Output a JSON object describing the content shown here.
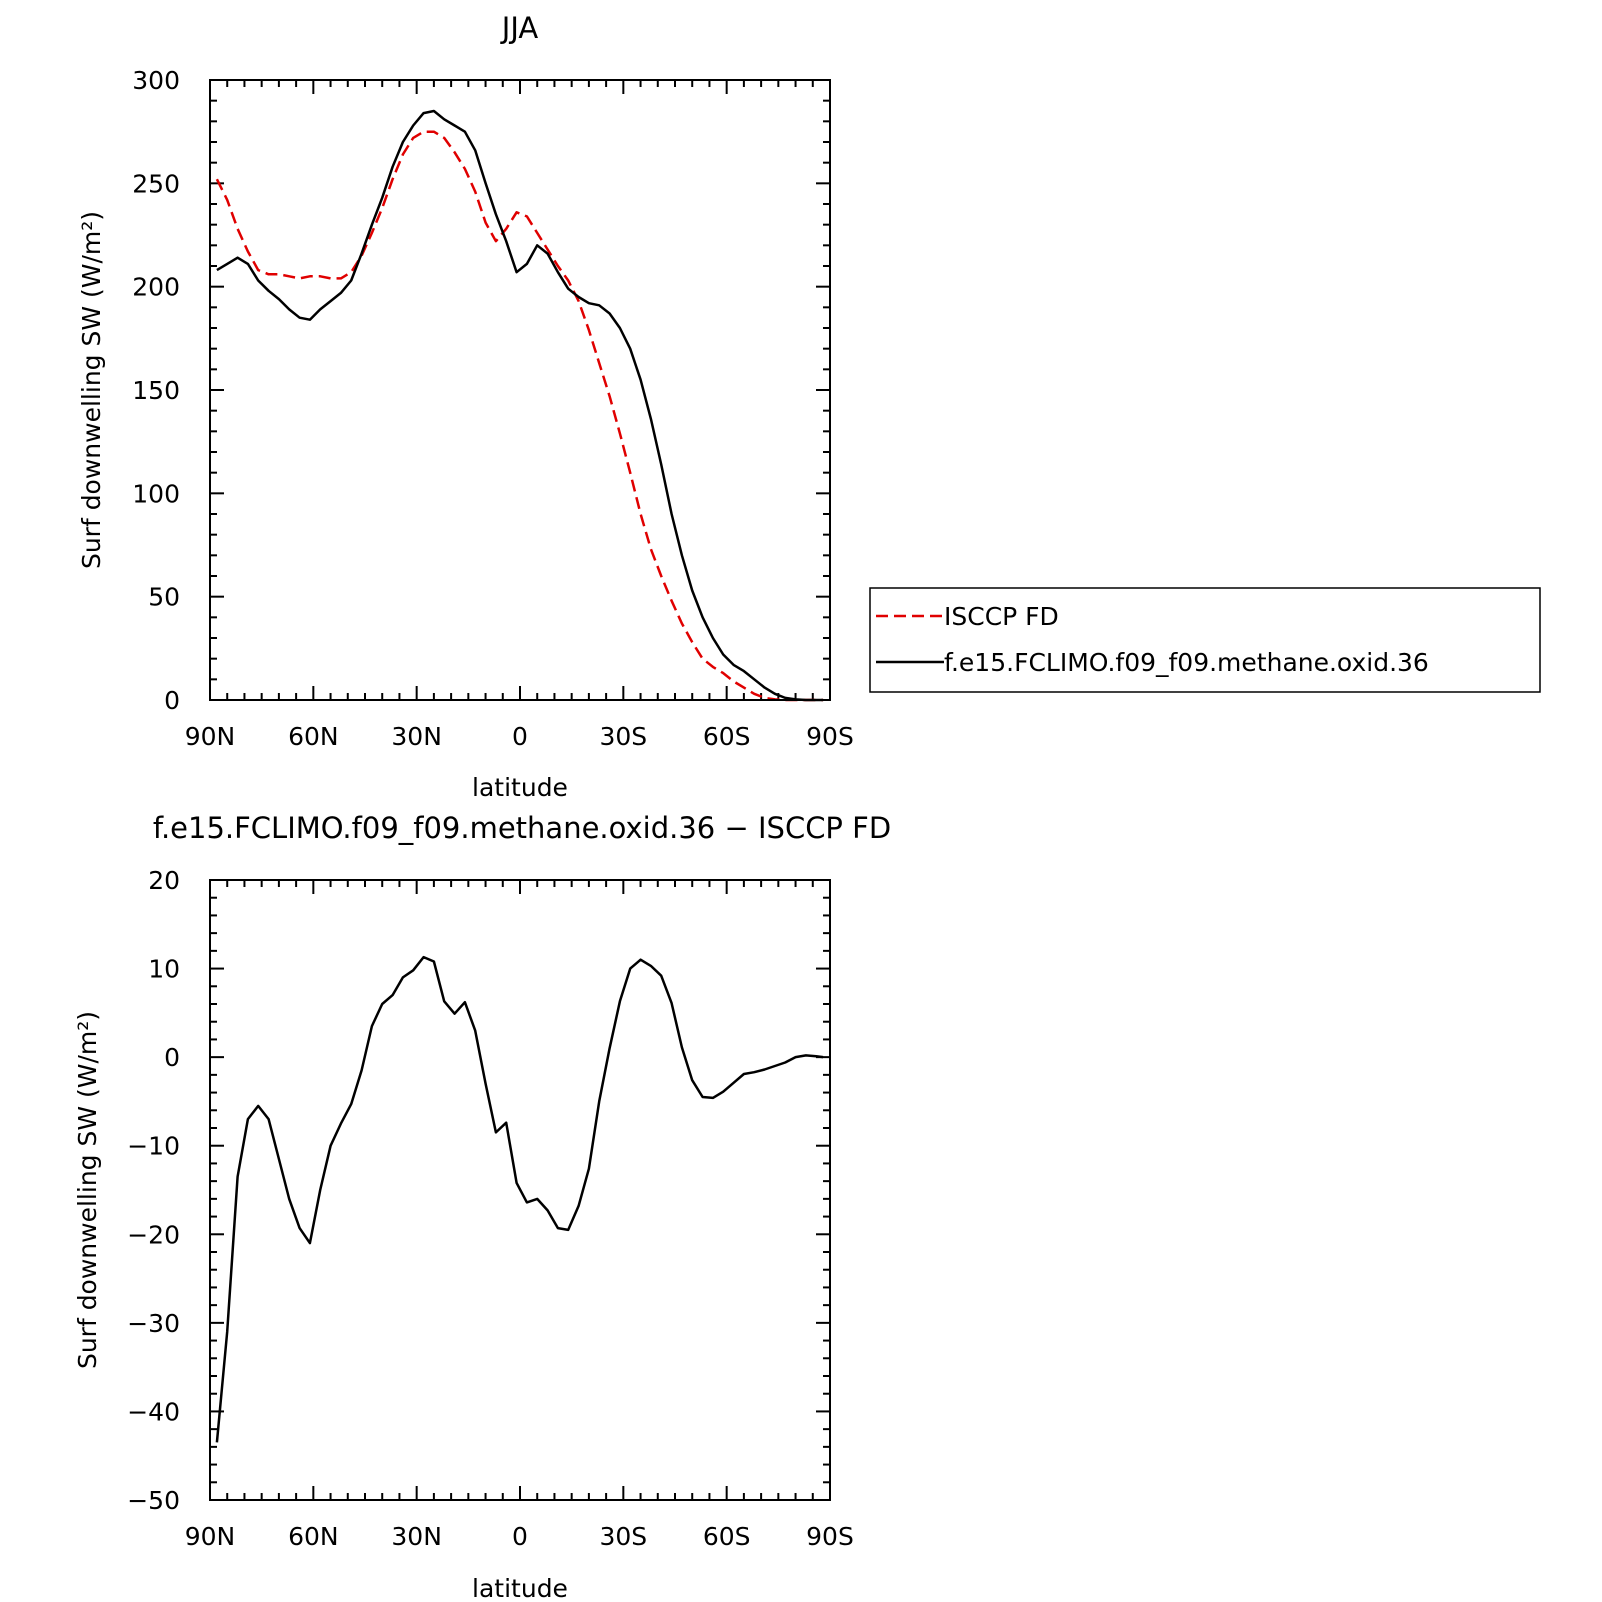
{
  "chart_data": [
    {
      "type": "line",
      "title": "JJA",
      "xlabel": "latitude",
      "ylabel": "Surf downwelling SW (W/m²)",
      "xlim": [
        90,
        -90
      ],
      "ylim": [
        0,
        300
      ],
      "x_ticks": [
        90,
        60,
        30,
        0,
        -30,
        -60,
        -90
      ],
      "x_tick_labels": [
        "90N",
        "60N",
        "30N",
        "0",
        "30S",
        "60S",
        "90S"
      ],
      "y_ticks": [
        0,
        50,
        100,
        150,
        200,
        250,
        300
      ],
      "y_tick_labels": [
        "0",
        "50",
        "100",
        "150",
        "200",
        "250",
        "300"
      ],
      "legend": {
        "placement": "right",
        "entries": [
          "ISCCP FD",
          "f.e15.FCLIMO.f09_f09.methane.oxid.36"
        ]
      },
      "series": [
        {
          "name": "ISCCP FD",
          "color": "#e00000",
          "dash": true,
          "x": [
            88,
            85,
            82,
            79,
            76,
            73,
            70,
            67,
            64,
            61,
            58,
            55,
            52,
            49,
            46,
            43,
            40,
            37,
            34,
            31,
            28,
            25,
            22,
            19,
            16,
            13,
            10,
            7,
            4,
            1,
            -2,
            -5,
            -8,
            -11,
            -14,
            -17,
            -20,
            -23,
            -26,
            -29,
            -32,
            -35,
            -38,
            -41,
            -44,
            -47,
            -50,
            -53,
            -56,
            -59,
            -62,
            -65,
            -68,
            -71,
            -74,
            -77,
            -80,
            -83,
            -86,
            -88
          ],
          "values": [
            252,
            242,
            228,
            217,
            208,
            206,
            206,
            205,
            204,
            205,
            205,
            204,
            204,
            207,
            215,
            226,
            238,
            252,
            264,
            272,
            275,
            275,
            272,
            265,
            257,
            246,
            231,
            222,
            228,
            236,
            234,
            226,
            218,
            210,
            203,
            193,
            179,
            163,
            147,
            129,
            110,
            90,
            73,
            60,
            48,
            37,
            28,
            20,
            16,
            13,
            9,
            6,
            3,
            1,
            0.3,
            0,
            0,
            0,
            0,
            0
          ]
        },
        {
          "name": "f.e15.FCLIMO.f09_f09.methane.oxid.36",
          "color": "#000000",
          "dash": false,
          "x": [
            88,
            85,
            82,
            79,
            76,
            73,
            70,
            67,
            64,
            61,
            58,
            55,
            52,
            49,
            46,
            43,
            40,
            37,
            34,
            31,
            28,
            25,
            22,
            19,
            16,
            13,
            10,
            7,
            4,
            1,
            -2,
            -5,
            -8,
            -11,
            -14,
            -17,
            -20,
            -23,
            -26,
            -29,
            -32,
            -35,
            -38,
            -41,
            -44,
            -47,
            -50,
            -53,
            -56,
            -59,
            -62,
            -65,
            -68,
            -71,
            -74,
            -77,
            -80,
            -83,
            -86,
            -88
          ],
          "values": [
            208,
            211,
            214,
            211,
            203,
            198,
            194,
            189,
            185,
            184,
            189,
            193,
            197,
            203,
            216,
            230,
            243,
            258,
            270,
            278,
            284,
            285,
            281,
            278,
            275,
            266,
            250,
            235,
            222,
            207,
            211,
            220,
            216,
            207,
            199,
            195,
            192,
            191,
            187,
            180,
            170,
            155,
            136,
            114,
            90,
            70,
            53,
            40,
            30,
            22,
            17,
            14,
            10,
            6,
            3,
            1,
            0.3,
            0,
            0,
            0
          ]
        }
      ]
    },
    {
      "type": "line",
      "title": "f.e15.FCLIMO.f09_f09.methane.oxid.36 − ISCCP FD",
      "xlabel": "latitude",
      "ylabel": "Surf downwelling SW (W/m²)",
      "xlim": [
        90,
        -90
      ],
      "ylim": [
        -50,
        20
      ],
      "x_ticks": [
        90,
        60,
        30,
        0,
        -30,
        -60,
        -90
      ],
      "x_tick_labels": [
        "90N",
        "60N",
        "30N",
        "0",
        "30S",
        "60S",
        "90S"
      ],
      "y_ticks": [
        -50,
        -40,
        -30,
        -20,
        -10,
        0,
        10,
        20
      ],
      "y_tick_labels": [
        "−50",
        "−40",
        "−30",
        "−20",
        "−10",
        "0",
        "10",
        "20"
      ],
      "series": [
        {
          "color": "#000000",
          "dash": false,
          "x": [
            88,
            85,
            82,
            79,
            76,
            73,
            70,
            67,
            64,
            61,
            58,
            55,
            52,
            49,
            46,
            43,
            40,
            37,
            34,
            31,
            28,
            25,
            22,
            19,
            16,
            13,
            10,
            7,
            4,
            1,
            -2,
            -5,
            -8,
            -11,
            -14,
            -17,
            -20,
            -23,
            -26,
            -29,
            -32,
            -35,
            -38,
            -41,
            -44,
            -47,
            -50,
            -53,
            -56,
            -59,
            -62,
            -65,
            -68,
            -71,
            -74,
            -77,
            -80,
            -83,
            -86,
            -88
          ],
          "values": [
            -43.5,
            -31,
            -13.5,
            -7,
            -5.5,
            -7,
            -11.5,
            -16,
            -19.3,
            -21,
            -15,
            -10,
            -7.5,
            -5.3,
            -1.5,
            3.5,
            6,
            7,
            9,
            9.8,
            11.3,
            10.8,
            6.3,
            4.9,
            6.2,
            3,
            -3,
            -8.5,
            -7.4,
            -14.2,
            -16.4,
            -16,
            -17.3,
            -19.3,
            -19.5,
            -16.8,
            -12.6,
            -5,
            1,
            6.3,
            10,
            11,
            10.3,
            9.2,
            6.1,
            1.1,
            -2.6,
            -4.5,
            -4.6,
            -3.9,
            -2.9,
            -1.9,
            -1.7,
            -1.4,
            -1,
            -0.6,
            0,
            0.2,
            0.1,
            0
          ]
        }
      ]
    }
  ]
}
